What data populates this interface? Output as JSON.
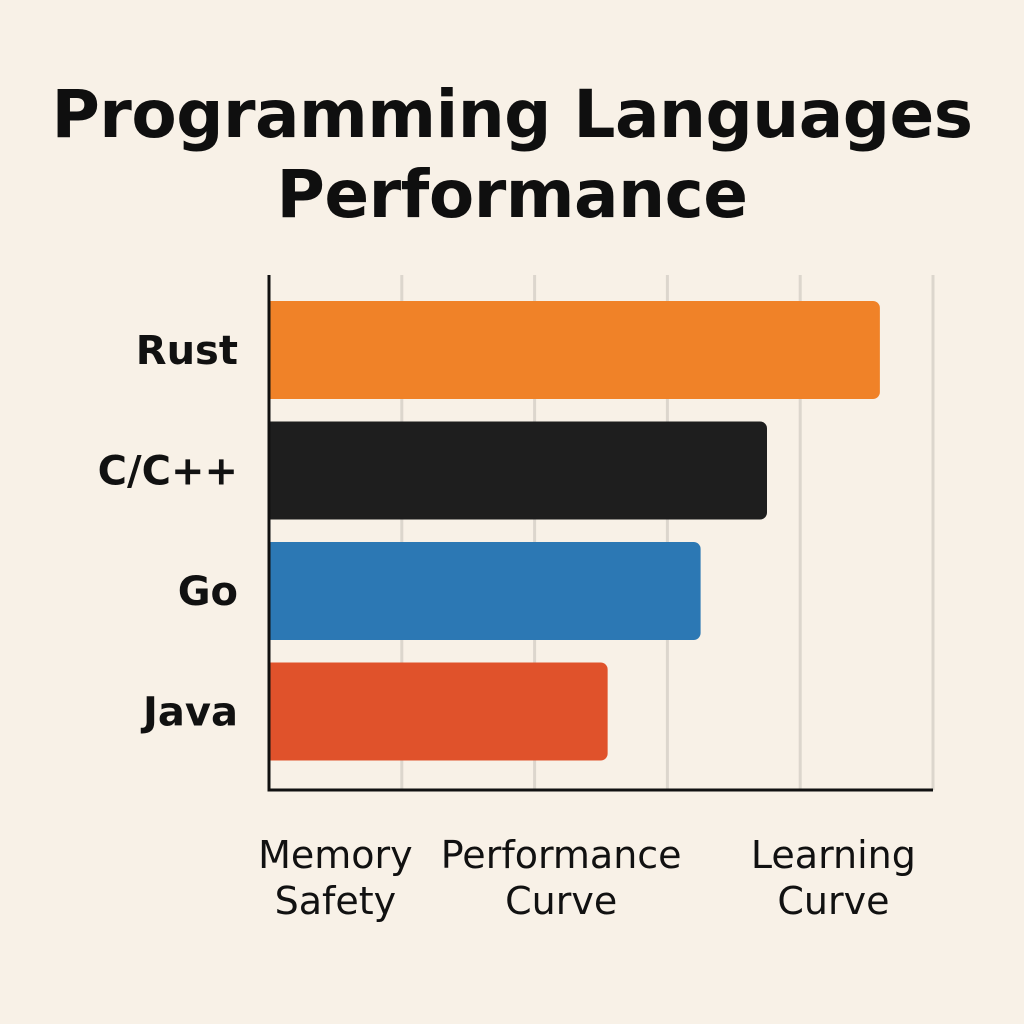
{
  "chart_data": {
    "type": "bar",
    "orientation": "horizontal",
    "title": "Programming Languages Performance",
    "title_lines": [
      "Programming Languages",
      "Performance"
    ],
    "categories": [
      "Rust",
      "C/C++",
      "Go",
      "Java"
    ],
    "values": [
      4.6,
      3.75,
      3.25,
      2.55
    ],
    "colors": [
      "#f08228",
      "#1e1e1e",
      "#2c78b4",
      "#e0522b"
    ],
    "xlim": [
      0,
      5
    ],
    "gridlines": [
      1,
      2,
      3,
      4,
      5
    ],
    "x_labels": [
      {
        "lines": [
          "Memory",
          "Safety"
        ],
        "at": 0.5
      },
      {
        "lines": [
          "Performance",
          "Curve"
        ],
        "at": 2.2
      },
      {
        "lines": [
          "Learning",
          "Curve"
        ],
        "at": 4.25
      }
    ],
    "grid": true,
    "legend": "none"
  }
}
